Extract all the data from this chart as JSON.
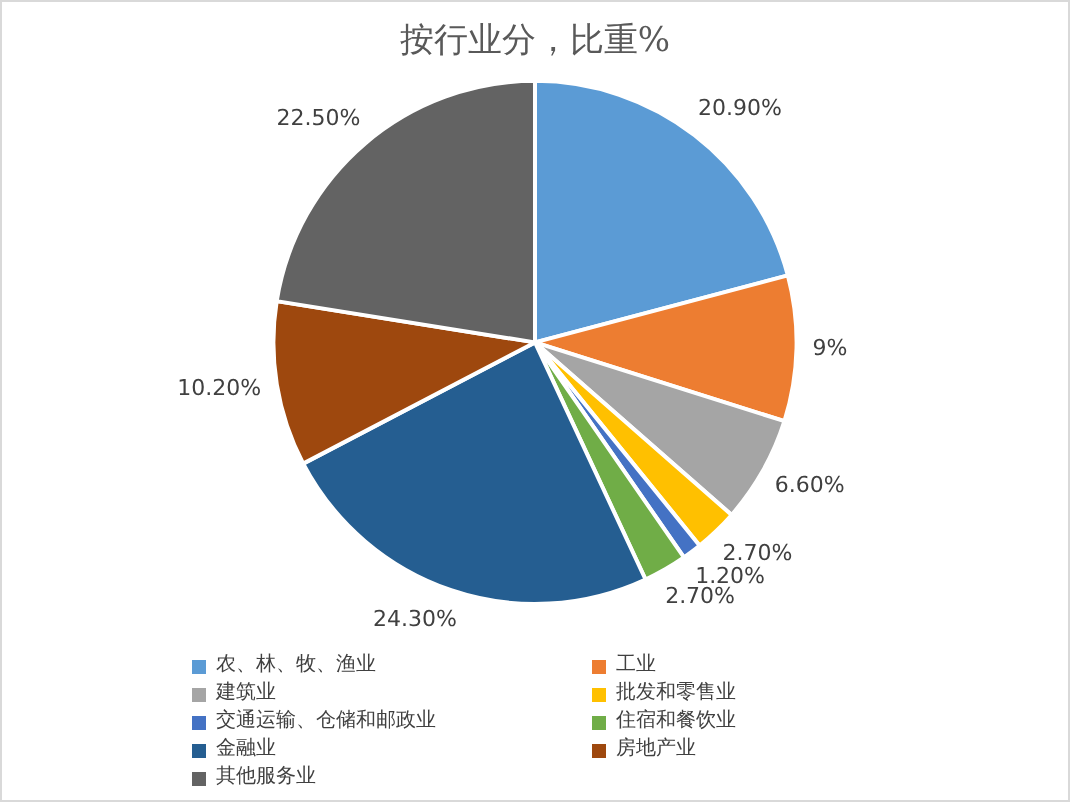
{
  "chart_data": {
    "type": "pie",
    "title": "按行业分，比重%",
    "categories": [
      "农、林、牧、渔业",
      "工业",
      "建筑业",
      "批发和零售业",
      "交通运输、仓储和邮政业",
      "住宿和餐饮业",
      "金融业",
      "房地产业",
      "其他服务业"
    ],
    "values": [
      20.9,
      9,
      6.6,
      2.7,
      1.2,
      2.7,
      24.3,
      10.2,
      22.5
    ],
    "value_labels": [
      "20.90%",
      "9%",
      "6.60%",
      "2.70%",
      "1.20%",
      "2.70%",
      "24.30%",
      "10.20%",
      "22.50%"
    ],
    "colors": [
      "#5b9bd5",
      "#ed7d31",
      "#a5a5a5",
      "#ffc000",
      "#4472c4",
      "#70ad47",
      "#255e91",
      "#9e480e",
      "#636363"
    ],
    "legend": "bottom"
  }
}
